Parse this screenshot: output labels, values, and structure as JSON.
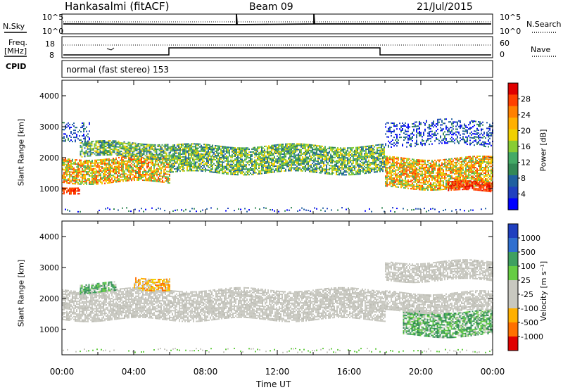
{
  "header": {
    "station": "Hankasalmi (fitACF)",
    "beam": "Beam 09",
    "date": "21/Jul/2015"
  },
  "aux": {
    "nsky_label": "N.Sky",
    "nsky_ticks": [
      "10^5",
      "10^0"
    ],
    "nsearch_ticks": [
      "10^5",
      "10^0"
    ],
    "nsearch_label": "N.Search",
    "freq_label": "Freq.",
    "freq_unit": "[MHz]",
    "freq_ticks": [
      "18",
      "8"
    ],
    "nave_ticks": [
      "60",
      "0"
    ],
    "nave_label": "Nave",
    "cpid_label": "CPID",
    "cpid_text": "normal (fast stereo) 153"
  },
  "chart_data": [
    {
      "type": "heatmap",
      "panel": "power",
      "ylabel": "Slant Range [km]",
      "yticks": [
        "4000",
        "3000",
        "2000",
        "1000"
      ],
      "ylim": [
        180,
        4500
      ],
      "xlim": [
        0,
        24
      ],
      "colorbar": {
        "label": "Power [dB]",
        "ticks": [
          "28",
          "24",
          "20",
          "16",
          "12",
          "8",
          "4"
        ],
        "colors": [
          "#e00000",
          "#ff4000",
          "#ff8000",
          "#ffb000",
          "#f0d000",
          "#88cc33",
          "#44aa66",
          "#338855",
          "#2060a0",
          "#2040c0",
          "#0000ff"
        ]
      },
      "bands": [
        {
          "t0": 0.0,
          "t1": 6.0,
          "r0": 1200,
          "r1": 2000,
          "level": "high"
        },
        {
          "t0": 0.0,
          "t1": 1.0,
          "r0": 900,
          "r1": 1100,
          "level": "peak"
        },
        {
          "t0": 1.0,
          "t1": 6.0,
          "r0": 2000,
          "r1": 2500,
          "level": "medium"
        },
        {
          "t0": 6.0,
          "t1": 18.0,
          "r0": 1500,
          "r1": 2400,
          "level": "medium"
        },
        {
          "t0": 18.0,
          "t1": 24.0,
          "r0": 1000,
          "r1": 2000,
          "level": "high"
        },
        {
          "t0": 21.5,
          "t1": 24.0,
          "r0": 900,
          "r1": 1200,
          "level": "peak"
        },
        {
          "t0": 18.0,
          "t1": 24.0,
          "r0": 2400,
          "r1": 3200,
          "level": "low"
        },
        {
          "t0": 0.0,
          "t1": 1.5,
          "r0": 2600,
          "r1": 3200,
          "level": "low"
        }
      ]
    },
    {
      "type": "heatmap",
      "panel": "velocity",
      "ylabel": "Slant Range [km]",
      "yticks": [
        "4000",
        "3000",
        "2000",
        "1000"
      ],
      "ylim": [
        180,
        4500
      ],
      "xlim": [
        0,
        24
      ],
      "xticks": [
        "00:00",
        "04:00",
        "08:00",
        "12:00",
        "16:00",
        "20:00",
        "00:00"
      ],
      "xlabel": "Time UT",
      "colorbar": {
        "label": "Velocity [m s⁻¹]",
        "ticks": [
          "1000",
          "500",
          "100",
          "25",
          "-25",
          "-100",
          "-500",
          "-1000"
        ],
        "colors": [
          "#1f3fbf",
          "#2f6fcf",
          "#3fa060",
          "#66cc44",
          "#c8c8c0",
          "#c8c8c0",
          "#ffb000",
          "#ff7000",
          "#e00000"
        ]
      },
      "bands": [
        {
          "t0": 0.0,
          "t1": 18.0,
          "r0": 1300,
          "r1": 2300,
          "level": "ground"
        },
        {
          "t0": 1.0,
          "t1": 3.0,
          "r0": 2200,
          "r1": 2500,
          "level": "positive"
        },
        {
          "t0": 4.0,
          "t1": 6.0,
          "r0": 2300,
          "r1": 2700,
          "level": "negative"
        },
        {
          "t0": 19.0,
          "t1": 24.0,
          "r0": 800,
          "r1": 1600,
          "level": "positive"
        },
        {
          "t0": 18.0,
          "t1": 24.0,
          "r0": 1600,
          "r1": 2200,
          "level": "ground"
        },
        {
          "t0": 18.0,
          "t1": 24.0,
          "r0": 2600,
          "r1": 3200,
          "level": "ground"
        }
      ]
    }
  ]
}
